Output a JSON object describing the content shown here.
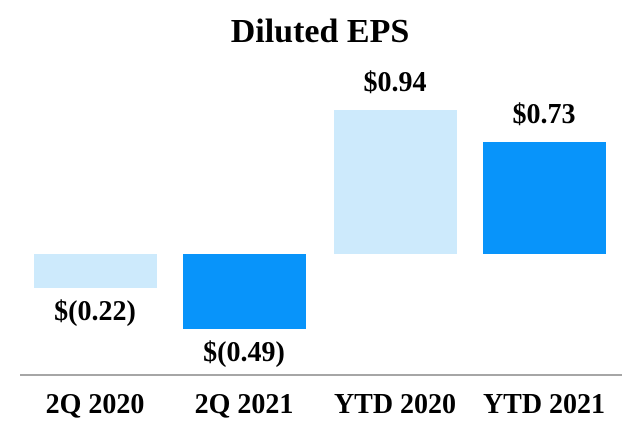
{
  "chart": {
    "title": "Diluted EPS"
  },
  "chart_data": {
    "type": "bar",
    "title": "Diluted EPS",
    "categories": [
      "2Q 2020",
      "2Q 2021",
      "YTD 2020",
      "YTD 2021"
    ],
    "values": [
      -0.22,
      -0.49,
      0.94,
      0.73
    ],
    "data_labels": [
      "$(0.22)",
      "$(0.49)",
      "$0.94",
      "$0.73"
    ],
    "bar_colors": [
      "#CDEAFC",
      "#0894FA",
      "#CDEAFC",
      "#0894FA"
    ],
    "axis_line_color": "#A6A6A6",
    "xlabel": "",
    "ylabel": "",
    "ylim": [
      -0.49,
      0.94
    ],
    "grid": false,
    "legend": "none",
    "data_label_position": "outside-end",
    "baseline_value": 0
  }
}
